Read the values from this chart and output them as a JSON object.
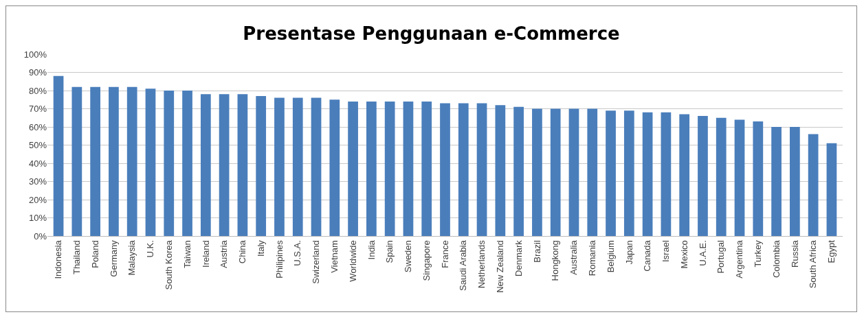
{
  "chart_data": {
    "type": "bar",
    "title": "Presentase Penggunaan e-Commerce",
    "categories": [
      "Indonesia",
      "Thailand",
      "Poland",
      "Germany",
      "Malaysia",
      "U.K.",
      "South Korea",
      "Taiwan",
      "Ireland",
      "Austria",
      "China",
      "Italy",
      "Philipines",
      "U.S.A.",
      "Swizerland",
      "Vietnam",
      "Worldwide",
      "India",
      "Spain",
      "Sweden",
      "Singapore",
      "France",
      "Saudi Arabia",
      "Netherlands",
      "New Zealand",
      "Denmark",
      "Brazil",
      "Hongkong",
      "Australia",
      "Romania",
      "Belgium",
      "Japan",
      "Canada",
      "Israel",
      "Mexico",
      "U.A.E.",
      "Portugal",
      "Argentina",
      "Turkey",
      "Colombia",
      "Russia",
      "South Africa",
      "Egypt"
    ],
    "values": [
      88,
      82,
      82,
      82,
      82,
      81,
      80,
      80,
      78,
      78,
      78,
      77,
      76,
      76,
      76,
      75,
      74,
      74,
      74,
      74,
      74,
      73,
      73,
      73,
      72,
      71,
      70,
      70,
      70,
      70,
      69,
      69,
      68,
      68,
      67,
      66,
      65,
      64,
      63,
      60,
      60,
      56,
      51
    ],
    "color": "#4a7ebb",
    "ylim": [
      0,
      100
    ],
    "yticks": [
      {
        "value": 0,
        "label": "0%"
      },
      {
        "value": 10,
        "label": "10%"
      },
      {
        "value": 20,
        "label": "20%"
      },
      {
        "value": 30,
        "label": "30%"
      },
      {
        "value": 40,
        "label": "40%"
      },
      {
        "value": 50,
        "label": "50%"
      },
      {
        "value": 60,
        "label": "60%"
      },
      {
        "value": 70,
        "label": "70%"
      },
      {
        "value": 80,
        "label": "80%"
      },
      {
        "value": 90,
        "label": "90%"
      },
      {
        "value": 100,
        "label": "100%"
      }
    ],
    "grid": "y"
  }
}
